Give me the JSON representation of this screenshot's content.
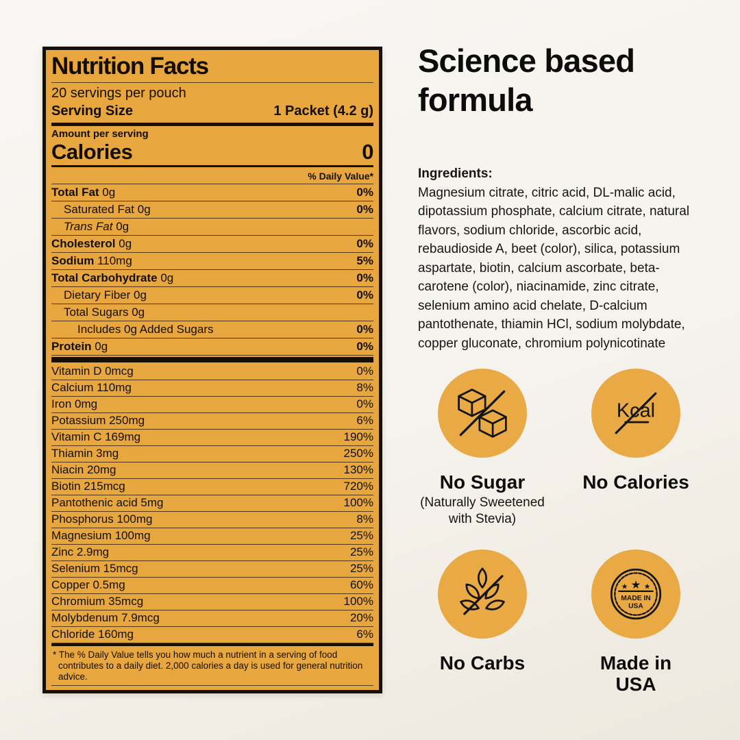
{
  "page": {
    "background_top": "#F8F6F3",
    "background_bottom": "#EDE8DE"
  },
  "label": {
    "bg_color": "#E7A63E",
    "border_color": "#161005",
    "title": "Nutrition Facts",
    "servings_per": "20 servings per pouch",
    "serving_size_label": "Serving Size",
    "serving_size_value": "1 Packet (4.2 g)",
    "amount_per_serving": "Amount per serving",
    "calories_label": "Calories",
    "calories_value": "0",
    "daily_value_header": "% Daily Value*",
    "main_rows": [
      {
        "name": "Total Fat",
        "amount": "0g",
        "dv": "0%",
        "bold": true,
        "indent": 0
      },
      {
        "name": "Saturated Fat",
        "amount": "0g",
        "dv": "0%",
        "bold": false,
        "indent": 1
      },
      {
        "name": "Trans Fat",
        "amount": "0g",
        "dv": "",
        "bold": false,
        "italic": true,
        "indent": 1
      },
      {
        "name": "Cholesterol",
        "amount": "0g",
        "dv": "0%",
        "bold": true,
        "indent": 0
      },
      {
        "name": "Sodium",
        "amount": "110mg",
        "dv": "5%",
        "bold": true,
        "indent": 0
      },
      {
        "name": "Total Carbohydrate",
        "amount": "0g",
        "dv": "0%",
        "bold": true,
        "indent": 0
      },
      {
        "name": "Dietary Fiber",
        "amount": "0g",
        "dv": "0%",
        "bold": false,
        "indent": 1
      },
      {
        "name": "Total Sugars",
        "amount": "0g",
        "dv": "",
        "bold": false,
        "indent": 1
      },
      {
        "name": "Includes 0g Added Sugars",
        "amount": "",
        "dv": "0%",
        "bold": false,
        "indent": 2
      },
      {
        "name": "Protein",
        "amount": "0g",
        "dv": "0%",
        "bold": true,
        "indent": 0
      }
    ],
    "vitamin_rows": [
      {
        "name": "Vitamin D 0mcg",
        "dv": "0%"
      },
      {
        "name": "Calcium 110mg",
        "dv": "8%"
      },
      {
        "name": "Iron 0mg",
        "dv": "0%"
      },
      {
        "name": "Potassium 250mg",
        "dv": "6%"
      },
      {
        "name": "Vitamin C 169mg",
        "dv": "190%"
      },
      {
        "name": "Thiamin 3mg",
        "dv": "250%"
      },
      {
        "name": "Niacin 20mg",
        "dv": "130%"
      },
      {
        "name": "Biotin 215mcg",
        "dv": "720%"
      },
      {
        "name": "Pantothenic acid 5mg",
        "dv": "100%"
      },
      {
        "name": "Phosphorus 100mg",
        "dv": "8%"
      },
      {
        "name": "Magnesium 100mg",
        "dv": "25%"
      },
      {
        "name": "Zinc 2.9mg",
        "dv": "25%"
      },
      {
        "name": "Selenium 15mcg",
        "dv": "25%"
      },
      {
        "name": "Copper 0.5mg",
        "dv": "60%"
      },
      {
        "name": "Chromium 35mcg",
        "dv": "100%"
      },
      {
        "name": "Molybdenum 7.9mcg",
        "dv": "20%"
      },
      {
        "name": "Chloride 160mg",
        "dv": "6%"
      }
    ],
    "footnote": "* The % Daily Value tells you how much a nutrient in a serving of food contributes to a daily diet. 2,000 calories a day is used for general nutrition advice."
  },
  "right": {
    "heading": "Science based formula",
    "ingredients_title": "Ingredients:",
    "ingredients_text": "Magnesium citrate, citric acid, DL-malic acid, dipotassium phosphate, calcium citrate, natural flavors, sodium chloride, ascorbic acid, rebaudioside A, beet (color), silica, potassium aspartate, biotin, calcium ascorbate, beta- carotene (color), niacinamide, zinc citrate, selenium amino acid chelate, D-calcium pantothenate, thiamin HCl, sodium molybdate, copper gluconate, chromium polynicotinate",
    "badge_color": "#E9A945",
    "badges": [
      {
        "icon": "no-sugar-icon",
        "title": "No Sugar",
        "subtitle": "(Naturally Sweetened with Stevia)"
      },
      {
        "icon": "no-calories-icon",
        "title": "No Calories",
        "subtitle": "",
        "kcal_text": "Kcal"
      },
      {
        "icon": "no-carbs-icon",
        "title": "No Carbs",
        "subtitle": ""
      },
      {
        "icon": "made-in-usa-icon",
        "title": "Made in USA",
        "subtitle": "",
        "seal_line1": "MADE IN",
        "seal_line2": "USA",
        "star": "★"
      }
    ]
  }
}
